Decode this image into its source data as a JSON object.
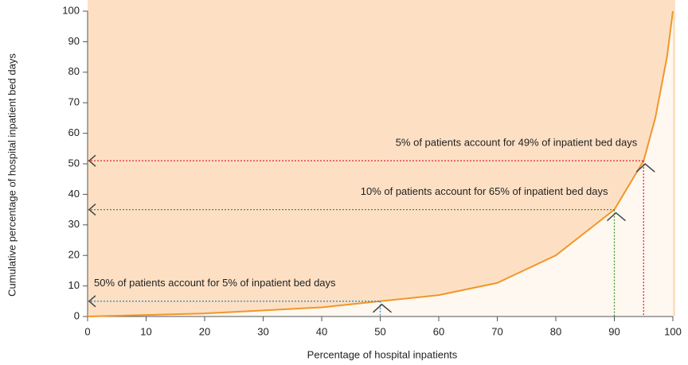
{
  "chart_data": {
    "type": "line",
    "x_label": "Percentage of hospital inpatients",
    "y_label": "Cumulative percentage of hospital inpatient bed days",
    "x": [
      0,
      10,
      20,
      30,
      40,
      50,
      60,
      70,
      80,
      90,
      95,
      97,
      99,
      100
    ],
    "series": [
      {
        "color": "#f0962a",
        "values": [
          0,
          0.5,
          1,
          2,
          3,
          5,
          7,
          11,
          20,
          35,
          51,
          65,
          85,
          100
        ]
      }
    ],
    "xlim": [
      0,
      100
    ],
    "xticks": [
      0,
      10,
      20,
      30,
      40,
      50,
      60,
      70,
      80,
      90,
      100
    ],
    "ylim": [
      0,
      100
    ],
    "yticks": [
      0,
      10,
      20,
      30,
      40,
      50,
      60,
      70,
      80,
      90,
      100
    ],
    "background": "#fde0c4",
    "annotations": [
      {
        "text": "5% of patients account for 49% of inpatient bed days",
        "x": 95,
        "y": 51,
        "color": "#e0202a"
      },
      {
        "text": "10% of patients account for 65% of inpatient bed days",
        "x": 90,
        "y": 35,
        "color": "#3a9a2a"
      },
      {
        "text": "50% of patients account for 5% of inpatient bed days",
        "x": 50,
        "y": 5,
        "color": "#2a8fd0"
      }
    ]
  }
}
